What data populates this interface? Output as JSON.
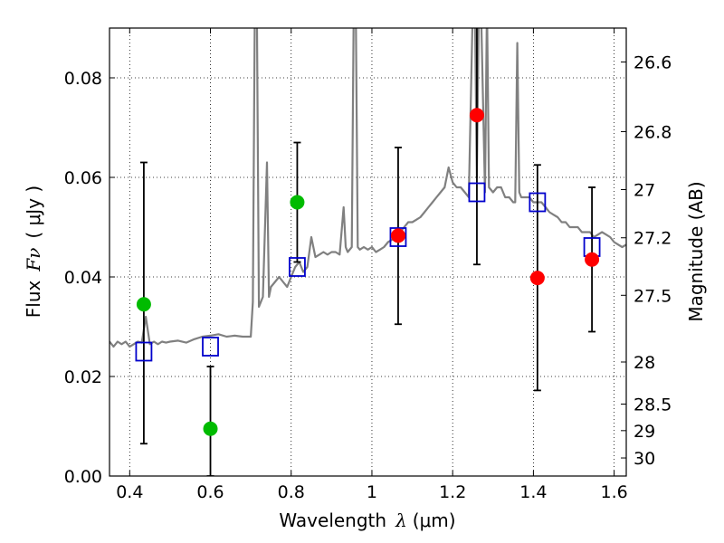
{
  "chart_data": {
    "type": "scatter",
    "title": "",
    "xlabel": {
      "prefix": "Wavelength",
      "symbol": "λ",
      "unit": "(μm)"
    },
    "ylabel": {
      "prefix": "Flux",
      "symbol": "Fν",
      "unit": "( μJy )"
    },
    "y2label": "Magnitude (AB)",
    "xlim": [
      0.35,
      1.63
    ],
    "ylim": [
      0.0,
      0.09
    ],
    "grid": true,
    "x_ticks": [
      {
        "value": 0.4,
        "label": "0.4"
      },
      {
        "value": 0.6,
        "label": "0.6"
      },
      {
        "value": 0.8,
        "label": "0.8"
      },
      {
        "value": 1.0,
        "label": "1"
      },
      {
        "value": 1.2,
        "label": "1.2"
      },
      {
        "value": 1.4,
        "label": "1.4"
      },
      {
        "value": 1.6,
        "label": "1.6"
      }
    ],
    "y_ticks": [
      {
        "value": 0.0,
        "label": "0.00"
      },
      {
        "value": 0.02,
        "label": "0.02"
      },
      {
        "value": 0.04,
        "label": "0.04"
      },
      {
        "value": 0.06,
        "label": "0.06"
      },
      {
        "value": 0.08,
        "label": "0.08"
      }
    ],
    "y2_ticks": [
      {
        "value": 26.6,
        "label": "26.6"
      },
      {
        "value": 26.8,
        "label": "26.8"
      },
      {
        "value": 27.0,
        "label": "27"
      },
      {
        "value": 27.2,
        "label": "27.2"
      },
      {
        "value": 27.5,
        "label": "27.5"
      },
      {
        "value": 28.0,
        "label": "28"
      },
      {
        "value": 28.5,
        "label": "28.5"
      },
      {
        "value": 29.0,
        "label": "29"
      },
      {
        "value": 30.0,
        "label": "30"
      }
    ],
    "colors": {
      "spectrum": "#808080",
      "model": "#0000cc",
      "green": "#00bb00",
      "red": "#ff0000",
      "errorbar": "#000000"
    },
    "series": [
      {
        "kind": "spectrum",
        "x": [
          0.35,
          0.36,
          0.37,
          0.38,
          0.39,
          0.4,
          0.41,
          0.42,
          0.43,
          0.44,
          0.45,
          0.46,
          0.47,
          0.48,
          0.49,
          0.5,
          0.52,
          0.54,
          0.56,
          0.58,
          0.6,
          0.62,
          0.64,
          0.66,
          0.68,
          0.7,
          0.705,
          0.71,
          0.715,
          0.72,
          0.73,
          0.74,
          0.745,
          0.75,
          0.76,
          0.77,
          0.78,
          0.79,
          0.8,
          0.81,
          0.82,
          0.83,
          0.84,
          0.85,
          0.86,
          0.87,
          0.88,
          0.89,
          0.9,
          0.91,
          0.92,
          0.93,
          0.935,
          0.94,
          0.95,
          0.955,
          0.96,
          0.965,
          0.97,
          0.98,
          0.99,
          1.0,
          1.01,
          1.02,
          1.03,
          1.04,
          1.05,
          1.06,
          1.07,
          1.08,
          1.09,
          1.1,
          1.11,
          1.12,
          1.13,
          1.14,
          1.15,
          1.16,
          1.17,
          1.18,
          1.19,
          1.2,
          1.21,
          1.22,
          1.23,
          1.24,
          1.25,
          1.255,
          1.26,
          1.265,
          1.27,
          1.28,
          1.285,
          1.29,
          1.3,
          1.31,
          1.32,
          1.33,
          1.34,
          1.35,
          1.355,
          1.36,
          1.365,
          1.37,
          1.38,
          1.39,
          1.4,
          1.41,
          1.42,
          1.43,
          1.44,
          1.45,
          1.46,
          1.47,
          1.48,
          1.49,
          1.5,
          1.51,
          1.52,
          1.53,
          1.54,
          1.55,
          1.56,
          1.57,
          1.58,
          1.59,
          1.6,
          1.61,
          1.62,
          1.63
        ],
        "y": [
          0.027,
          0.026,
          0.027,
          0.0265,
          0.027,
          0.026,
          0.0265,
          0.027,
          0.0268,
          0.032,
          0.0265,
          0.027,
          0.0265,
          0.027,
          0.0268,
          0.027,
          0.0272,
          0.0268,
          0.0275,
          0.028,
          0.0282,
          0.0285,
          0.028,
          0.0282,
          0.028,
          0.028,
          0.035,
          0.095,
          0.095,
          0.034,
          0.036,
          0.063,
          0.036,
          0.038,
          0.039,
          0.04,
          0.039,
          0.038,
          0.04,
          0.042,
          0.043,
          0.041,
          0.042,
          0.048,
          0.044,
          0.0445,
          0.045,
          0.0445,
          0.045,
          0.045,
          0.0445,
          0.054,
          0.046,
          0.045,
          0.046,
          0.095,
          0.095,
          0.046,
          0.0455,
          0.046,
          0.0455,
          0.046,
          0.045,
          0.0455,
          0.046,
          0.047,
          0.0475,
          0.048,
          0.049,
          0.05,
          0.051,
          0.051,
          0.0515,
          0.052,
          0.053,
          0.054,
          0.055,
          0.056,
          0.057,
          0.058,
          0.062,
          0.059,
          0.058,
          0.058,
          0.057,
          0.056,
          0.095,
          0.095,
          0.06,
          0.095,
          0.095,
          0.057,
          0.095,
          0.058,
          0.057,
          0.058,
          0.058,
          0.056,
          0.056,
          0.055,
          0.055,
          0.087,
          0.057,
          0.056,
          0.056,
          0.056,
          0.055,
          0.055,
          0.055,
          0.054,
          0.053,
          0.0525,
          0.052,
          0.051,
          0.051,
          0.05,
          0.05,
          0.05,
          0.049,
          0.049,
          0.049,
          0.048,
          0.0485,
          0.049,
          0.0485,
          0.048,
          0.047,
          0.0465,
          0.046,
          0.0465
        ]
      },
      {
        "kind": "model",
        "marker": "open-square",
        "x": [
          0.435,
          0.6,
          0.815,
          1.065,
          1.26,
          1.41,
          1.545
        ],
        "y": [
          0.025,
          0.026,
          0.042,
          0.048,
          0.057,
          0.055,
          0.046
        ]
      },
      {
        "kind": "green-points",
        "marker": "filled-circle",
        "x": [
          0.435,
          0.6,
          0.815
        ],
        "y": [
          0.0345,
          0.0095,
          0.055
        ],
        "err_low": [
          0.0065,
          0.0,
          0.043
        ],
        "err_high": [
          0.063,
          0.022,
          0.067
        ]
      },
      {
        "kind": "red-points",
        "marker": "filled-circle",
        "x": [
          1.065,
          1.26,
          1.41,
          1.545
        ],
        "y": [
          0.0483,
          0.0725,
          0.0398,
          0.0435
        ],
        "err_low": [
          0.0305,
          0.0425,
          0.0172,
          0.029
        ],
        "err_high": [
          0.066,
          0.095,
          0.0625,
          0.058
        ]
      }
    ]
  }
}
